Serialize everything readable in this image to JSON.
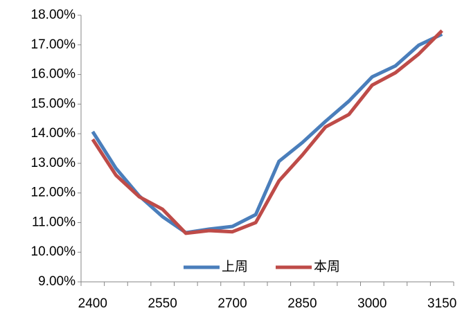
{
  "chart_data": {
    "type": "line",
    "categories": [
      "2400",
      null,
      null,
      "2550",
      null,
      null,
      "2700",
      null,
      null,
      "2850",
      null,
      null,
      "3000",
      null,
      null,
      "3150"
    ],
    "series": [
      {
        "name": "上周",
        "color": "#4a7ebb",
        "values": [
          14.07,
          12.83,
          11.9,
          11.2,
          10.66,
          10.78,
          10.87,
          11.27,
          13.07,
          13.7,
          14.42,
          15.1,
          15.92,
          16.29,
          16.99,
          17.36
        ]
      },
      {
        "name": "本周",
        "color": "#be4b48",
        "values": [
          13.81,
          12.6,
          11.87,
          11.45,
          10.64,
          10.73,
          10.69,
          11.0,
          12.41,
          13.28,
          14.23,
          14.65,
          15.64,
          16.06,
          16.69,
          17.48
        ]
      }
    ],
    "ylim": [
      9,
      18
    ],
    "yticks": [
      {
        "value": 9,
        "label": "9.00%"
      },
      {
        "value": 10,
        "label": "10.00%"
      },
      {
        "value": 11,
        "label": "11.00%"
      },
      {
        "value": 12,
        "label": "12.00%"
      },
      {
        "value": 13,
        "label": "13.00%"
      },
      {
        "value": 14,
        "label": "14.00%"
      },
      {
        "value": 15,
        "label": "15.00%"
      },
      {
        "value": 16,
        "label": "16.00%"
      },
      {
        "value": 17,
        "label": "17.00%"
      },
      {
        "value": 18,
        "label": "18.00%"
      }
    ],
    "grid": false,
    "legend": "bottom"
  }
}
